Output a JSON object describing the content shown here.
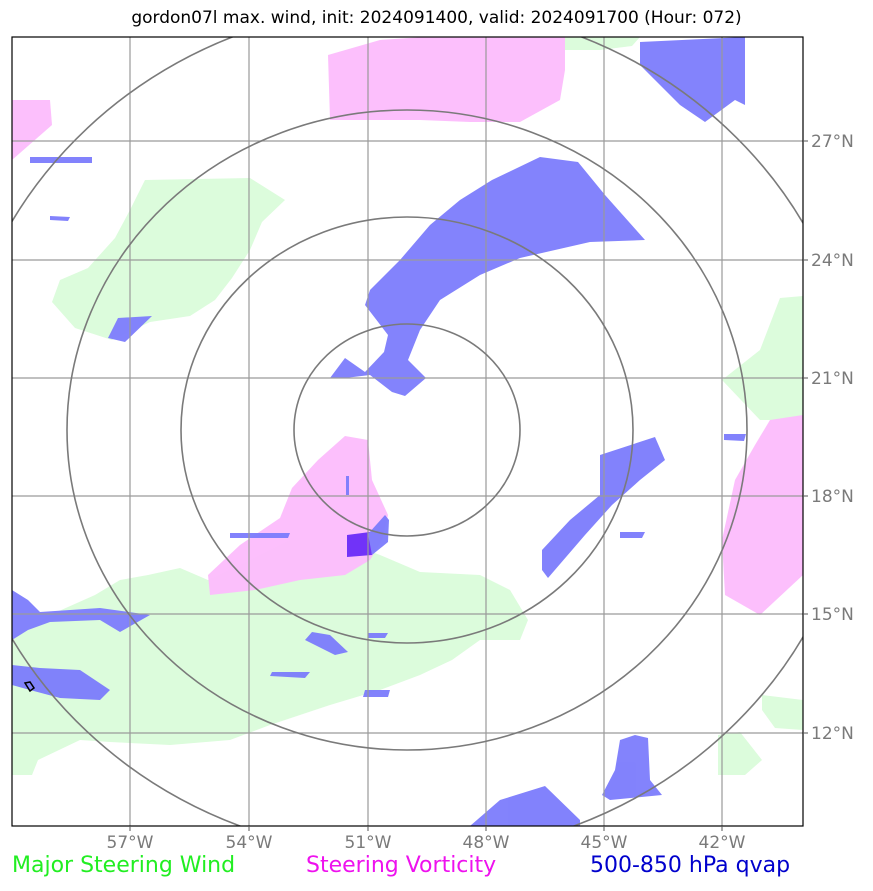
{
  "title": "gordon07l max. wind, init: 2024091400, valid: 2024091700 (Hour: 072)",
  "x_ticks": [
    "57°W",
    "54°W",
    "51°W",
    "48°W",
    "45°W",
    "42°W"
  ],
  "y_ticks": [
    "27°N",
    "24°N",
    "21°N",
    "18°N",
    "15°N",
    "12°N"
  ],
  "legend": {
    "wind": "Major Steering Wind",
    "vorticity": "Steering Vorticity",
    "qvap": "500-850 hPa qvap"
  },
  "colors": {
    "wind": "#22ee22",
    "vorticity": "#ee11ee",
    "qvap": "#0000cc",
    "wind_fill": "#dcfcdc",
    "vort_fill": "#fcbcfc",
    "qvap_fill": "#7c7cfc"
  }
}
